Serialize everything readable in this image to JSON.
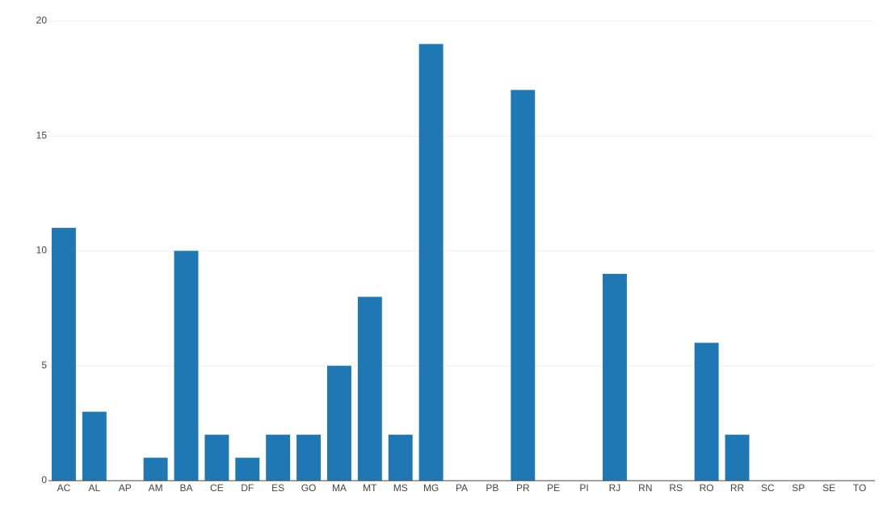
{
  "chart_data": {
    "type": "bar",
    "categories": [
      "AC",
      "AL",
      "AP",
      "AM",
      "BA",
      "CE",
      "DF",
      "ES",
      "GO",
      "MA",
      "MT",
      "MS",
      "MG",
      "PA",
      "PB",
      "PR",
      "PE",
      "PI",
      "RJ",
      "RN",
      "RS",
      "RO",
      "RR",
      "SC",
      "SP",
      "SE",
      "TO"
    ],
    "values": [
      11,
      3,
      0,
      1,
      10,
      2,
      1,
      2,
      2,
      5,
      8,
      2,
      19,
      0,
      0,
      17,
      0,
      0,
      9,
      0,
      0,
      6,
      2,
      0,
      0,
      0,
      0
    ],
    "color": "#1f77b4",
    "ylim": [
      0,
      20
    ],
    "yticks": [
      0,
      5,
      10,
      15,
      20
    ],
    "grid": true
  }
}
